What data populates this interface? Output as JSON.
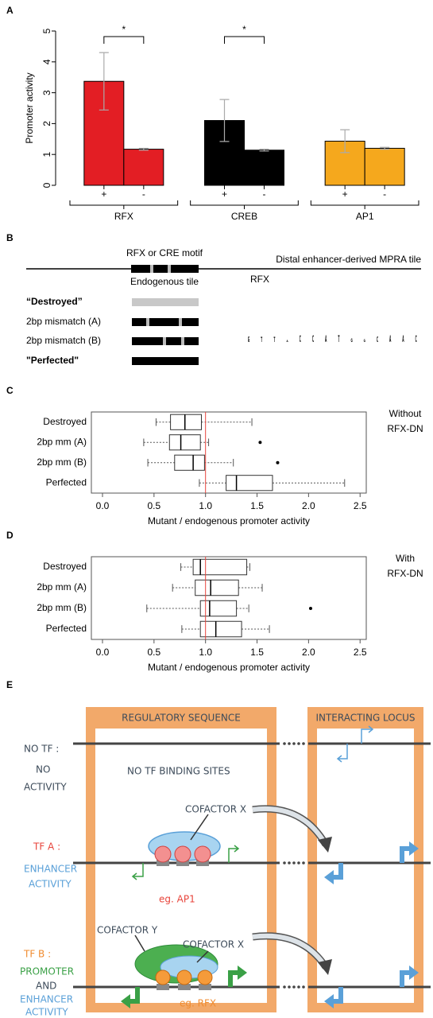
{
  "panel_labels": [
    "A",
    "B",
    "C",
    "D",
    "E"
  ],
  "chart_data": [
    {
      "type": "bar",
      "ylabel": "Promoter activity",
      "categories": [
        "RFX",
        "CREB",
        "AP1"
      ],
      "colors": [
        "#e31e24",
        "#000000",
        "#f5a81d"
      ],
      "series": [
        {
          "name": "+",
          "values": [
            3.37,
            2.1,
            1.43
          ],
          "errors": [
            0.93,
            0.68,
            0.37
          ]
        },
        {
          "name": "-",
          "values": [
            1.17,
            1.14,
            1.2
          ],
          "errors": [
            0.03,
            0.03,
            0.03
          ]
        }
      ],
      "significance": [
        "*",
        "*",
        null
      ],
      "ylim": [
        0,
        5
      ],
      "yticks": [
        0,
        1,
        2,
        3,
        4,
        5
      ]
    },
    {
      "type": "box",
      "xlabel": "Mutant / endogenous promoter activity",
      "note": [
        "Without",
        "RFX-DN"
      ],
      "categories": [
        "Destroyed",
        "2bp mm (A)",
        "2bp mm (B)",
        "Perfected"
      ],
      "stats": [
        {
          "whisker_low": 0.52,
          "q1": 0.66,
          "median": 0.8,
          "q3": 0.96,
          "whisker_high": 1.45,
          "outliers": []
        },
        {
          "whisker_low": 0.4,
          "q1": 0.65,
          "median": 0.76,
          "q3": 0.95,
          "whisker_high": 1.03,
          "outliers": [
            1.53
          ]
        },
        {
          "whisker_low": 0.44,
          "q1": 0.7,
          "median": 0.88,
          "q3": 0.99,
          "whisker_high": 1.27,
          "outliers": [
            1.7
          ]
        },
        {
          "whisker_low": 0.94,
          "q1": 1.2,
          "median": 1.3,
          "q3": 1.65,
          "whisker_high": 2.35,
          "outliers": []
        }
      ],
      "reference_line": 1,
      "reference_color": "#e8453c",
      "xlim": [
        -0.108,
        2.56
      ],
      "xticks": [
        {
          "value": 0,
          "label": "0.0"
        },
        0.5,
        {
          "value": 1,
          "label": "1.0"
        },
        1.5,
        {
          "value": 2,
          "label": "2.0"
        },
        2.5
      ]
    },
    {
      "type": "box",
      "xlabel": "Mutant / endogenous promoter activity",
      "note": [
        "With",
        "RFX-DN"
      ],
      "categories": [
        "Destroyed",
        "2bp mm (A)",
        "2bp mm (B)",
        "Perfected"
      ],
      "stats": [
        {
          "whisker_low": 0.76,
          "q1": 0.88,
          "median": 0.95,
          "q3": 1.4,
          "whisker_high": 1.43,
          "outliers": []
        },
        {
          "whisker_low": 0.68,
          "q1": 0.9,
          "median": 1.05,
          "q3": 1.32,
          "whisker_high": 1.55,
          "outliers": []
        },
        {
          "whisker_low": 0.43,
          "q1": 0.95,
          "median": 1.04,
          "q3": 1.3,
          "whisker_high": 1.42,
          "outliers": [
            2.02
          ]
        },
        {
          "whisker_low": 0.77,
          "q1": 0.95,
          "median": 1.1,
          "q3": 1.35,
          "whisker_high": 1.62,
          "outliers": []
        }
      ],
      "reference_line": 1,
      "reference_color": "#e8453c",
      "xlim": [
        -0.108,
        2.56
      ],
      "xticks": [
        {
          "value": 0,
          "label": "0.0"
        },
        0.5,
        {
          "value": 1,
          "label": "1.0"
        },
        1.5,
        {
          "value": 2,
          "label": "2.0"
        },
        2.5
      ]
    }
  ],
  "panel_b": {
    "motif_label": "RFX or CRE motif",
    "tile_label": "Distal enhancer-derived MPRA tile",
    "endogenous": "Endogenous tile",
    "variants": [
      "“Destroyed”",
      "2bp mismatch (A)",
      "2bp mismatch (B)",
      "\"Perfected\""
    ],
    "logo": {
      "title": "RFX",
      "letters": [
        {
          "letter": "G",
          "bits": 1.6
        },
        {
          "letter": "T",
          "bits": 1.5
        },
        {
          "letter": "T",
          "bits": 1.5
        },
        {
          "letter": "A",
          "bits": 0.6
        },
        {
          "letter": "C",
          "bits": 1.9
        },
        {
          "letter": "C",
          "bits": 1.9
        },
        {
          "letter": "A",
          "bits": 1.9
        },
        {
          "letter": "T",
          "bits": 2.0
        },
        {
          "letter": "G",
          "bits": 1.1
        },
        {
          "letter": "G",
          "bits": 0.7
        },
        {
          "letter": "C",
          "bits": 1.7
        },
        {
          "letter": "A",
          "bits": 2.0
        },
        {
          "letter": "A",
          "bits": 2.0
        },
        {
          "letter": "C",
          "bits": 2.0
        }
      ],
      "colors": {
        "A": "#2e9e3a",
        "C": "#2d4fa1",
        "G": "#f5a81d",
        "T": "#e31e24"
      }
    }
  },
  "panel_e": {
    "header_left": "REGULATORY SEQUENCE",
    "header_right": "INTERACTING LOCUS",
    "no_tf": [
      "NO TF :",
      "NO",
      "ACTIVITY"
    ],
    "no_sites": "NO TF BINDING SITES",
    "tf_a": [
      "TF A :",
      "ENHANCER",
      "ACTIVITY"
    ],
    "tf_a_cofactor": "COFACTOR X",
    "tf_a_example": "eg. AP1",
    "tf_b": [
      "TF B :",
      "PROMOTER",
      "AND",
      "ENHANCER",
      "ACTIVITY"
    ],
    "tf_b_cofactors": [
      "COFACTOR Y",
      "COFACTOR X"
    ],
    "tf_b_example": "eg. RFX"
  }
}
